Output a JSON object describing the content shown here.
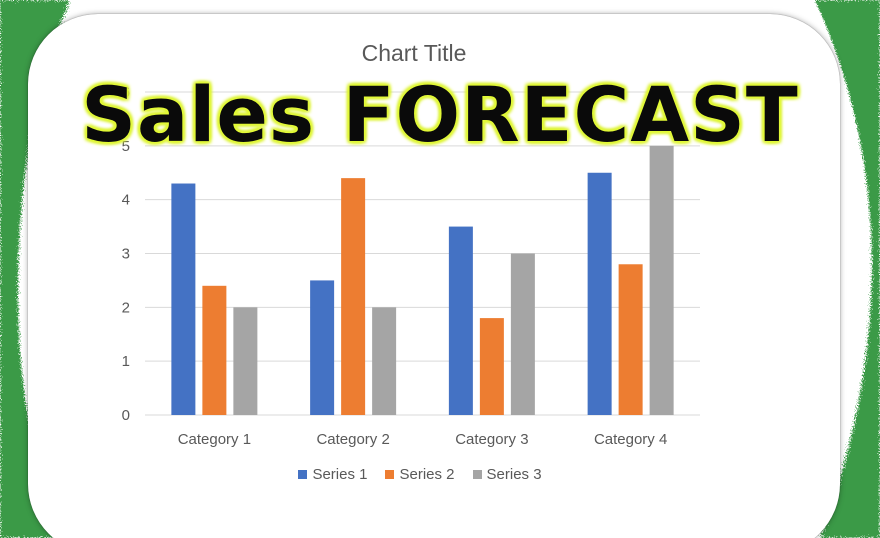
{
  "colors": {
    "frame_green": "#3a9a46",
    "series1": "#4472c4",
    "series2": "#ed7d31",
    "series3": "#a5a5a5",
    "gridline": "#d9d9d9",
    "axis_text": "#595959",
    "overlay_glow": "#e8ff3a"
  },
  "overlay": {
    "title": "Sales FORECAST"
  },
  "chart_data": {
    "type": "bar",
    "title": "Chart Title",
    "categories": [
      "Category 1",
      "Category 2",
      "Category 3",
      "Category 4"
    ],
    "series": [
      {
        "name": "Series 1",
        "color_key": "series1",
        "values": [
          4.3,
          2.5,
          3.5,
          4.5
        ]
      },
      {
        "name": "Series 2",
        "color_key": "series2",
        "values": [
          2.4,
          4.4,
          1.8,
          2.8
        ]
      },
      {
        "name": "Series 3",
        "color_key": "series3",
        "values": [
          2,
          2,
          3,
          5
        ]
      }
    ],
    "y_ticks": [
      "0",
      "1",
      "2",
      "3",
      "4",
      "5",
      "6"
    ],
    "ylim": [
      0,
      6
    ],
    "grid": true,
    "legend_position": "bottom"
  }
}
